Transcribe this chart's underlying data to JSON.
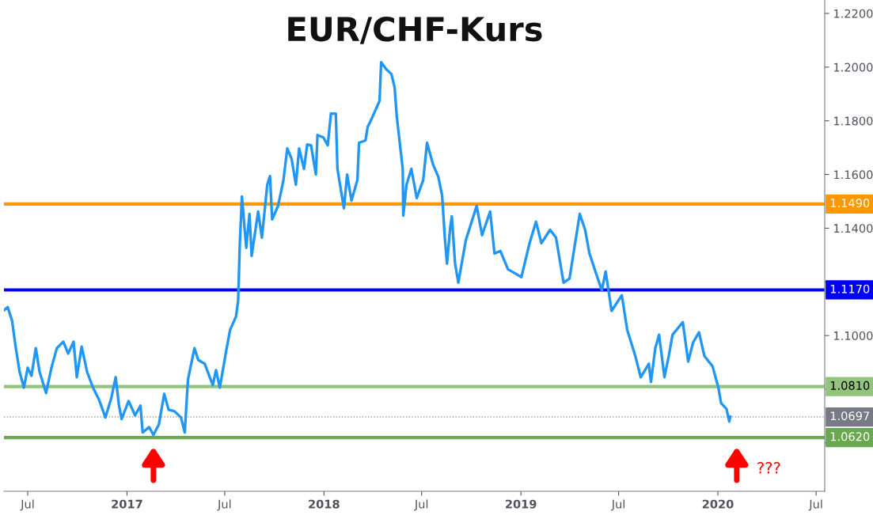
{
  "chart_data": {
    "type": "line",
    "title": "EUR/CHF-Kurs",
    "x": [
      "2016-05-18",
      "2016-05-25",
      "2016-06-02",
      "2016-06-09",
      "2016-06-16",
      "2016-06-24",
      "2016-07-01",
      "2016-07-08",
      "2016-07-16",
      "2016-07-23",
      "2016-08-04",
      "2016-08-14",
      "2016-08-24",
      "2016-09-05",
      "2016-09-14",
      "2016-09-24",
      "2016-09-30",
      "2016-10-09",
      "2016-10-19",
      "2016-10-30",
      "2016-11-10",
      "2016-11-22",
      "2016-12-03",
      "2016-12-11",
      "2016-12-17",
      "2016-12-22",
      "2017-01-04",
      "2017-01-16",
      "2017-01-26",
      "2017-01-30",
      "2017-02-11",
      "2017-02-19",
      "2017-03-01",
      "2017-03-11",
      "2017-03-19",
      "2017-03-30",
      "2017-04-11",
      "2017-04-18",
      "2017-04-24",
      "2017-05-06",
      "2017-05-13",
      "2017-05-25",
      "2017-06-09",
      "2017-06-15",
      "2017-06-22",
      "2017-07-04",
      "2017-07-11",
      "2017-07-22",
      "2017-07-26",
      "2017-07-29",
      "2017-08-02",
      "2017-08-10",
      "2017-08-16",
      "2017-08-20",
      "2017-09-01",
      "2017-09-08",
      "2017-09-18",
      "2017-09-23",
      "2017-09-27",
      "2017-10-08",
      "2017-10-18",
      "2017-10-25",
      "2017-11-02",
      "2017-11-10",
      "2017-11-16",
      "2017-11-25",
      "2017-12-01",
      "2017-12-08",
      "2017-12-17",
      "2017-12-20",
      "2017-12-31",
      "2018-01-08",
      "2018-01-14",
      "2018-01-23",
      "2018-01-26",
      "2018-02-07",
      "2018-02-13",
      "2018-02-21",
      "2018-03-04",
      "2018-03-07",
      "2018-03-19",
      "2018-03-23",
      "2018-03-30",
      "2018-04-10",
      "2018-04-14",
      "2018-04-17",
      "2018-04-27",
      "2018-05-06",
      "2018-05-12",
      "2018-05-16",
      "2018-05-27",
      "2018-05-28",
      "2018-06-03",
      "2018-06-12",
      "2018-06-22",
      "2018-07-04",
      "2018-07-11",
      "2018-07-22",
      "2018-08-01",
      "2018-08-08",
      "2018-08-13",
      "2018-08-17",
      "2018-08-23",
      "2018-08-26",
      "2018-09-01",
      "2018-09-07",
      "2018-09-21",
      "2018-10-11",
      "2018-10-21",
      "2018-11-05",
      "2018-11-13",
      "2018-11-24",
      "2018-12-08",
      "2019-01-02",
      "2019-01-17",
      "2019-01-29",
      "2019-02-08",
      "2019-02-24",
      "2019-03-07",
      "2019-03-21",
      "2019-04-01",
      "2019-04-20",
      "2019-04-30",
      "2019-05-08",
      "2019-05-19",
      "2019-05-31",
      "2019-06-07",
      "2019-06-18",
      "2019-07-07",
      "2019-07-17",
      "2019-08-01",
      "2019-08-11",
      "2019-08-26",
      "2019-08-30",
      "2019-09-07",
      "2019-09-14",
      "2019-09-24",
      "2019-10-02",
      "2019-10-09",
      "2019-10-28",
      "2019-11-07",
      "2019-11-16",
      "2019-11-27",
      "2019-12-07",
      "2019-12-22",
      "2020-01-02",
      "2020-01-07",
      "2020-01-17",
      "2020-01-22",
      "2020-01-24"
    ],
    "series": [
      {
        "color": "#2196f3",
        "values": [
          1.1094,
          1.1106,
          1.1056,
          1.0953,
          1.0865,
          1.0806,
          1.088,
          1.085,
          1.0953,
          1.0865,
          1.0786,
          1.088,
          1.0953,
          1.0977,
          1.0933,
          1.0977,
          1.0845,
          1.0959,
          1.0865,
          1.0806,
          1.0762,
          1.0695,
          1.0768,
          1.0845,
          1.0742,
          1.0689,
          1.0756,
          1.0703,
          1.0739,
          1.0639,
          1.0659,
          1.063,
          1.0668,
          1.0783,
          1.0724,
          1.0718,
          1.0695,
          1.0639,
          1.0836,
          1.0953,
          1.0909,
          1.0895,
          1.0815,
          1.0871,
          1.0806,
          1.0945,
          1.1021,
          1.1071,
          1.113,
          1.1336,
          1.1518,
          1.1327,
          1.1453,
          1.1297,
          1.1462,
          1.1365,
          1.1562,
          1.1594,
          1.1433,
          1.1483,
          1.158,
          1.1697,
          1.1659,
          1.1562,
          1.1697,
          1.1621,
          1.1712,
          1.1709,
          1.16,
          1.1747,
          1.1738,
          1.1709,
          1.1827,
          1.1827,
          1.1621,
          1.1474,
          1.16,
          1.1503,
          1.158,
          1.1718,
          1.1727,
          1.1777,
          1.1806,
          1.1856,
          1.1874,
          1.2018,
          1.1991,
          1.1974,
          1.1924,
          1.1815,
          1.1621,
          1.1447,
          1.1562,
          1.1621,
          1.1512,
          1.158,
          1.1718,
          1.1638,
          1.1591,
          1.1521,
          1.1365,
          1.1268,
          1.1403,
          1.1444,
          1.1268,
          1.1197,
          1.1356,
          1.1483,
          1.1374,
          1.1462,
          1.1306,
          1.1315,
          1.1247,
          1.1218,
          1.1344,
          1.1424,
          1.1344,
          1.1394,
          1.1365,
          1.1197,
          1.1212,
          1.1453,
          1.1394,
          1.1306,
          1.1239,
          1.1168,
          1.1239,
          1.1092,
          1.115,
          1.1021,
          1.0924,
          1.0845,
          1.0895,
          1.0827,
          1.0953,
          1.1003,
          1.0845,
          1.0924,
          1.1003,
          1.105,
          1.0903,
          1.0974,
          1.1012,
          1.0924,
          1.0886,
          1.0806,
          1.0748,
          1.0727,
          1.068,
          1.0698
        ]
      }
    ],
    "xlim": [
      "2016-05-18",
      "2020-07-17"
    ],
    "xticks": [
      {
        "value": "2016-07-01",
        "label": "Jul"
      },
      {
        "value": "2017-01-01",
        "label": "2017"
      },
      {
        "value": "2017-07-01",
        "label": "Jul"
      },
      {
        "value": "2018-01-01",
        "label": "2018"
      },
      {
        "value": "2018-07-01",
        "label": "Jul"
      },
      {
        "value": "2019-01-01",
        "label": "2019"
      },
      {
        "value": "2019-07-01",
        "label": "Jul"
      },
      {
        "value": "2020-01-01",
        "label": "2020"
      },
      {
        "value": "2020-07-01",
        "label": "Jul"
      }
    ],
    "ylim": [
      1.042,
      1.225
    ],
    "yticks": [
      {
        "value": 1.06,
        "label": null
      },
      {
        "value": 1.08,
        "label": null
      },
      {
        "value": 1.1,
        "label": "1.1000"
      },
      {
        "value": 1.12,
        "label": null
      },
      {
        "value": 1.14,
        "label": "1.1400"
      },
      {
        "value": 1.16,
        "label": "1.1600"
      },
      {
        "value": 1.18,
        "label": "1.1800"
      },
      {
        "value": 1.2,
        "label": "1.2000"
      },
      {
        "value": 1.22,
        "label": "1.2200"
      }
    ],
    "ref_lines": [
      {
        "axis": "y",
        "value": 1.149,
        "label": "1.1490",
        "color": "#ff9800"
      },
      {
        "axis": "y",
        "value": 1.117,
        "label": "1.1170",
        "color": "#0000ff"
      },
      {
        "axis": "y",
        "value": 1.081,
        "label": "1.0810",
        "color": "#93c47d"
      },
      {
        "axis": "y",
        "value": 1.0697,
        "label": "1.0697",
        "color": "#9e9e9e",
        "line_style": "dotted"
      },
      {
        "axis": "y",
        "value": 1.062,
        "label": "1.0620",
        "color": "#6aa84f"
      }
    ],
    "annotations": [
      "???"
    ],
    "grid": false,
    "legend": false,
    "marker": "none",
    "line_style": "solid"
  }
}
